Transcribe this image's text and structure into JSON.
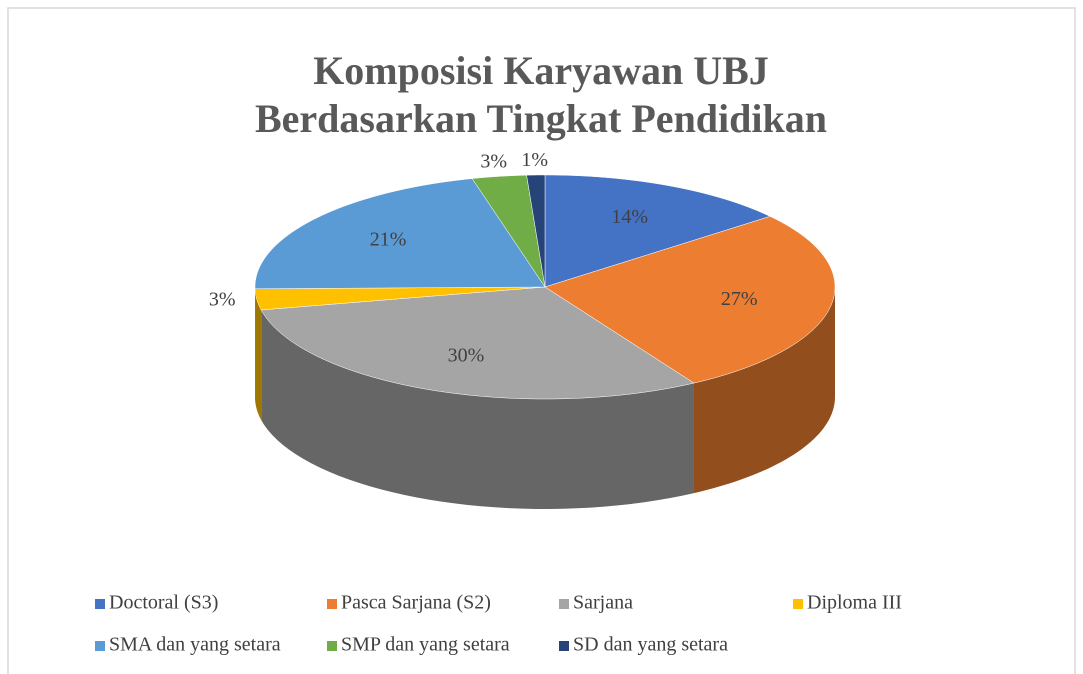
{
  "chart_data": {
    "type": "pie3d",
    "title": [
      "Komposisi Karyawan UBJ",
      "Berdasarkan Tingkat Pendidikan"
    ],
    "categories": [
      "Doctoral (S3)",
      "Pasca Sarjana (S2)",
      "Sarjana",
      "Diploma III",
      "SMA dan yang setara",
      "SMP dan yang setara",
      "SD dan yang setara"
    ],
    "values": [
      14,
      27,
      30,
      3,
      21,
      3,
      1
    ],
    "value_labels": [
      "14%",
      "27%",
      "30%",
      "3%",
      "21%",
      "3%",
      "1%"
    ],
    "colors": [
      "#4472c4",
      "#ed7d31",
      "#a5a5a5",
      "#ffc000",
      "#5b9bd5",
      "#70ad47",
      "#264478"
    ],
    "legend": "bottom"
  }
}
